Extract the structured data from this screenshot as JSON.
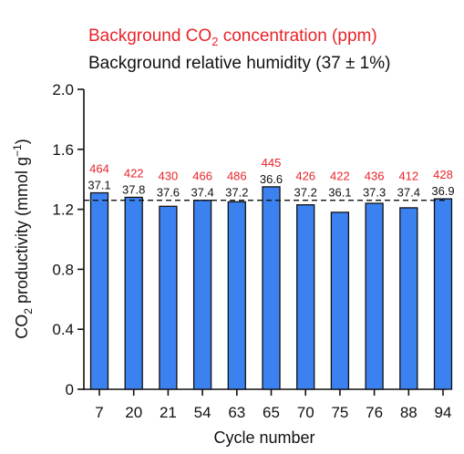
{
  "legend": {
    "co2_label_prefix": "Background CO",
    "co2_label_sub": "2",
    "co2_label_suffix": " concentration (ppm)",
    "humidity_label": "Background relative humidity (37 ± 1%)"
  },
  "axes": {
    "ylabel_prefix": "CO",
    "ylabel_sub": "2",
    "ylabel_mid": " productivity (mmol g",
    "ylabel_sup": "−1",
    "ylabel_suffix": ")",
    "xlabel": "Cycle number"
  },
  "colors": {
    "bar": "#3b82f0",
    "co2_text": "#e8242a",
    "humidity_text": "#111111"
  },
  "chart_data": {
    "type": "bar",
    "categories": [
      "7",
      "20",
      "21",
      "54",
      "63",
      "65",
      "70",
      "75",
      "76",
      "88",
      "94"
    ],
    "values": [
      1.31,
      1.28,
      1.22,
      1.26,
      1.25,
      1.35,
      1.23,
      1.18,
      1.24,
      1.21,
      1.27
    ],
    "co2_ppm": [
      "464",
      "422",
      "430",
      "466",
      "486",
      "445",
      "426",
      "422",
      "436",
      "412",
      "428"
    ],
    "humidity": [
      "37.1",
      "37.8",
      "37.6",
      "37.4",
      "37.2",
      "36.6",
      "37.2",
      "36.1",
      "37.3",
      "37.4",
      "36.9"
    ],
    "yticks": [
      "0",
      "0.4",
      "0.8",
      "1.2",
      "1.6",
      "2.0"
    ],
    "ylim": [
      0,
      2.0
    ],
    "reference_line": 1.26
  }
}
